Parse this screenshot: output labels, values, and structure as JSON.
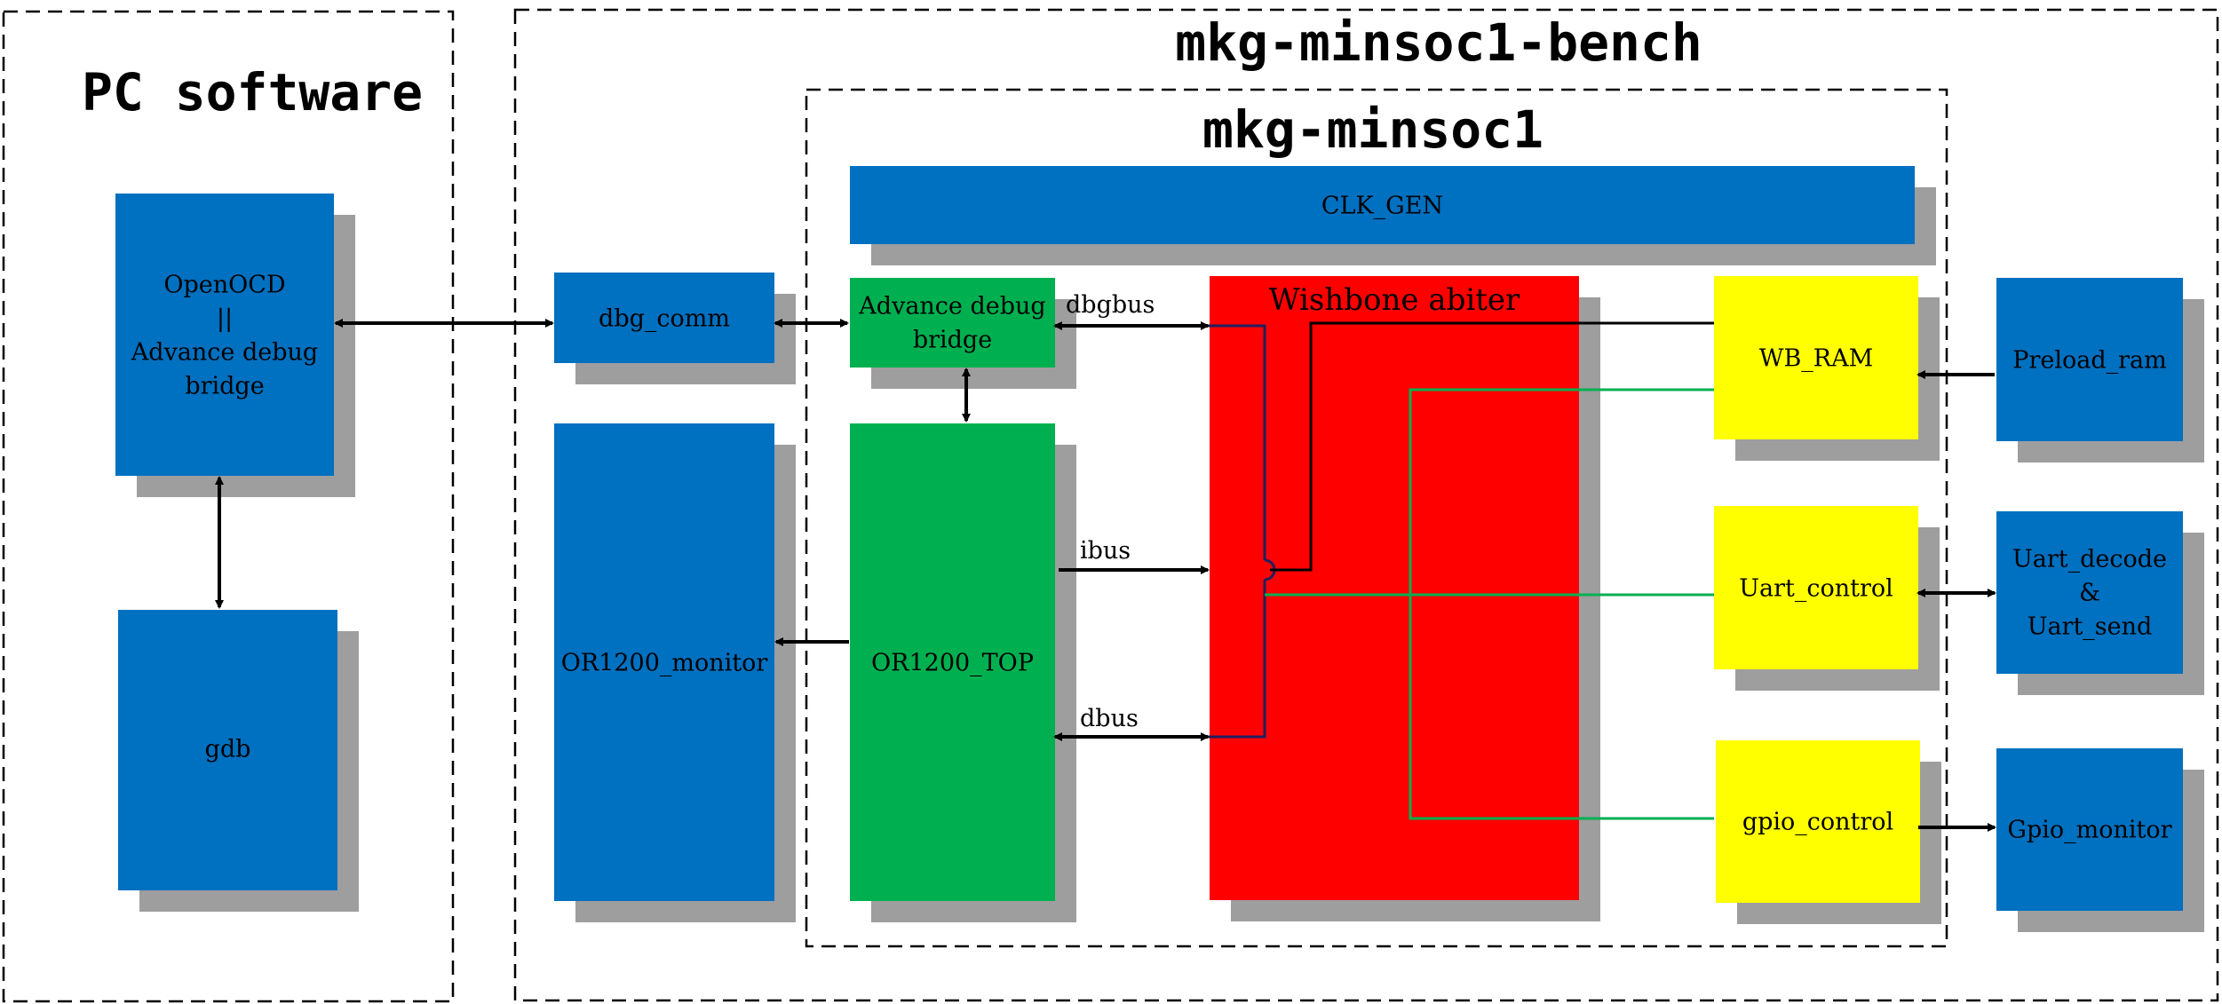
{
  "regions": {
    "pc_software": "PC software",
    "bench": "mkg-minsoc1-bench",
    "minsoc": "mkg-minsoc1"
  },
  "blocks": {
    "openocd": {
      "lines": [
        "OpenOCD",
        "||",
        "Advance debug",
        "bridge"
      ],
      "color": "#0070C0"
    },
    "gdb": {
      "lines": [
        "gdb"
      ],
      "color": "#0070C0"
    },
    "dbg_comm": {
      "lines": [
        "dbg_comm"
      ],
      "color": "#0070C0"
    },
    "or1200_monitor": {
      "lines": [
        "OR1200_monitor"
      ],
      "color": "#0070C0"
    },
    "clk_gen": {
      "lines": [
        "CLK_GEN"
      ],
      "color": "#0070C0"
    },
    "adv_debug": {
      "lines": [
        "Advance debug",
        "bridge"
      ],
      "color": "#00B050"
    },
    "or1200_top": {
      "lines": [
        "OR1200_TOP"
      ],
      "color": "#00B050"
    },
    "wishbone": {
      "lines": [
        "Wishbone abiter"
      ],
      "color": "#FF0000"
    },
    "wb_ram": {
      "lines": [
        "WB_RAM"
      ],
      "color": "#FFFF00"
    },
    "uart_control": {
      "lines": [
        "Uart_control"
      ],
      "color": "#FFFF00"
    },
    "gpio_control": {
      "lines": [
        "gpio_control"
      ],
      "color": "#FFFF00"
    },
    "preload_ram": {
      "lines": [
        "Preload_ram"
      ],
      "color": "#0070C0"
    },
    "uart_decode": {
      "lines": [
        "Uart_decode",
        "&",
        "Uart_send"
      ],
      "color": "#0070C0"
    },
    "gpio_monitor": {
      "lines": [
        "Gpio_monitor"
      ],
      "color": "#0070C0"
    }
  },
  "buses": {
    "dbgbus": "dbgbus",
    "ibus": "ibus",
    "dbus": "dbus"
  },
  "colors": {
    "shadow": "#9E9E9E",
    "slave_wire": "#00B050",
    "master_wire": "#1F1F5F"
  }
}
